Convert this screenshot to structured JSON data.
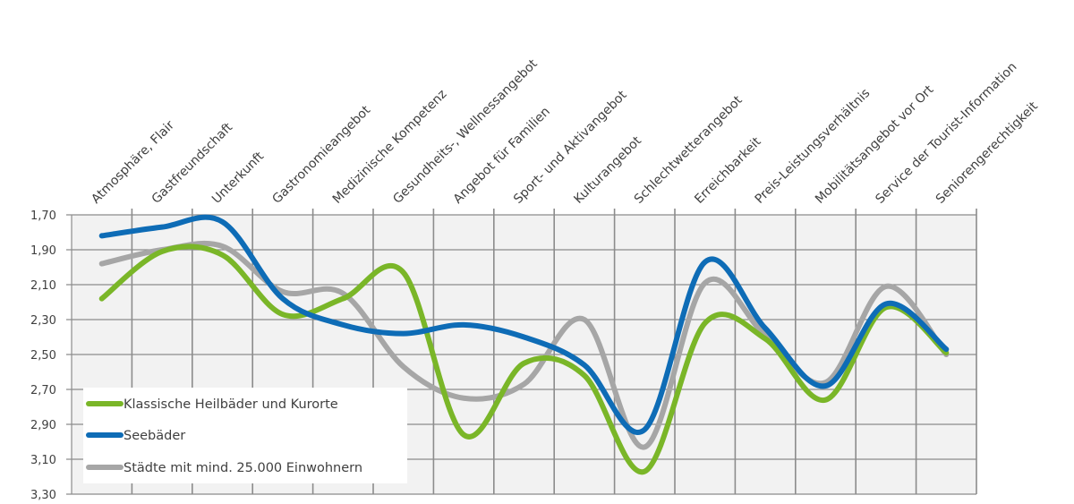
{
  "chart_data": {
    "type": "line",
    "title": "",
    "xlabel": "",
    "ylabel": "",
    "ylim": [
      1.7,
      3.3
    ],
    "y_inverted": true,
    "y_ticks": [
      "1,70",
      "1,90",
      "2,10",
      "2,30",
      "2,50",
      "2,70",
      "2,90",
      "3,10",
      "3,30"
    ],
    "grid": true,
    "smooth": true,
    "legend_position": "inside-bottom-left",
    "categories": [
      "Atmosphäre, Flair",
      "Gastfreundschaft",
      "Unterkunft",
      "Gastronomieangebot",
      "Medizinische Kompetenz",
      "Gesundheits-, Wellnessangebot",
      "Angebot für Familien",
      "Sport- und Aktivangebot",
      "Kulturangebot",
      "Schlechtwetterangebot",
      "Erreichbarkeit",
      "Preis-Leistungsverhältnis",
      "Mobilitätsangebot vor Ort",
      "Service der Tourist-Information",
      "Seniorengerechtigkeit"
    ],
    "series": [
      {
        "name": "Klassische Heilbäder und Kurorte",
        "color": "#7ab628",
        "values": [
          2.18,
          1.91,
          1.93,
          2.27,
          2.18,
          2.03,
          2.96,
          2.55,
          2.62,
          3.17,
          2.32,
          2.41,
          2.76,
          2.23,
          2.49
        ]
      },
      {
        "name": "Seebäder",
        "color": "#0e6cb6",
        "values": [
          1.82,
          1.77,
          1.74,
          2.18,
          2.33,
          2.38,
          2.33,
          2.4,
          2.56,
          2.93,
          1.97,
          2.35,
          2.68,
          2.21,
          2.47
        ]
      },
      {
        "name": "Städte mit mind. 25.000 Einwohnern",
        "color": "#a6a6a6",
        "values": [
          1.98,
          1.9,
          1.88,
          2.14,
          2.15,
          2.57,
          2.75,
          2.67,
          2.3,
          3.03,
          2.09,
          2.39,
          2.66,
          2.11,
          2.5
        ]
      }
    ]
  },
  "legend": {
    "items": [
      {
        "label": "Klassische Heilbäder und Kurorte",
        "color": "#7ab628"
      },
      {
        "label": "Seebäder",
        "color": "#0e6cb6"
      },
      {
        "label": "Städte mit mind. 25.000 Einwohnern",
        "color": "#a6a6a6"
      }
    ]
  },
  "colors": {
    "plot_background": "#f2f2f2",
    "gridline": "#8c8c8c"
  }
}
